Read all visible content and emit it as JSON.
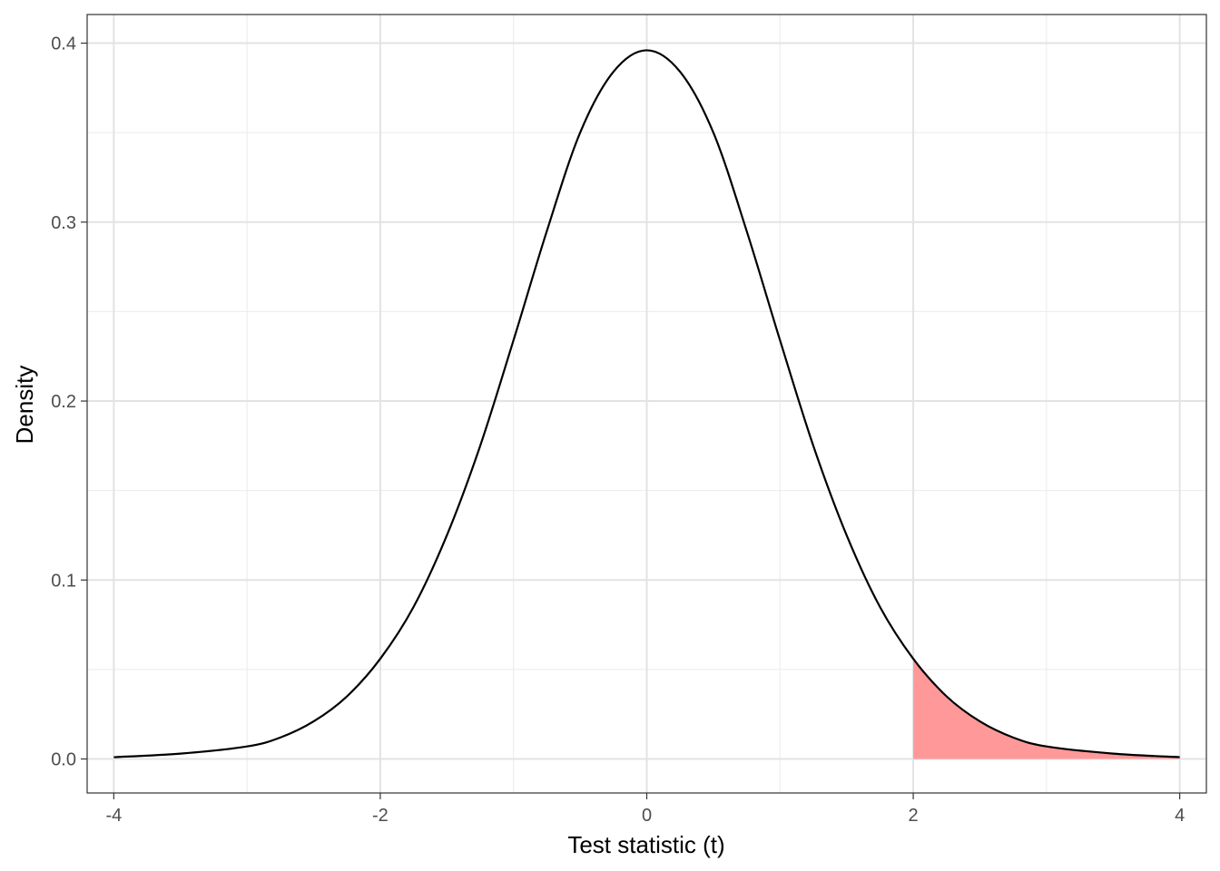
{
  "chart_data": {
    "type": "area",
    "title": "",
    "xlabel": "Test statistic (t)",
    "ylabel": "Density",
    "xlim": [
      -4.2,
      4.2
    ],
    "ylim": [
      -0.019,
      0.416
    ],
    "x_ticks": [
      -4,
      -2,
      0,
      2,
      4
    ],
    "x_tick_labels": [
      "-4",
      "-2",
      "0",
      "2",
      "4"
    ],
    "y_ticks": [
      0.0,
      0.1,
      0.2,
      0.3,
      0.4
    ],
    "y_tick_labels": [
      "0.0",
      "0.1",
      "0.2",
      "0.3",
      "0.4"
    ],
    "x_minor_ticks": [
      -3,
      -1,
      1,
      3
    ],
    "y_minor_ticks": [
      0.05,
      0.15,
      0.25,
      0.35
    ],
    "grid": true,
    "series": [
      {
        "type": "line",
        "color": "#000000",
        "x": [
          -4.0,
          -3.5,
          -3.0,
          -2.75,
          -2.5,
          -2.25,
          -2.0,
          -1.75,
          -1.5,
          -1.25,
          -1.0,
          -0.75,
          -0.5,
          -0.25,
          0.0,
          0.25,
          0.5,
          0.75,
          1.0,
          1.25,
          1.5,
          1.75,
          2.0,
          2.25,
          2.5,
          2.75,
          3.0,
          3.5,
          4.0
        ],
        "values": [
          0.001,
          0.003,
          0.007,
          0.012,
          0.021,
          0.035,
          0.056,
          0.085,
          0.125,
          0.175,
          0.234,
          0.295,
          0.35,
          0.384,
          0.396,
          0.384,
          0.35,
          0.295,
          0.234,
          0.175,
          0.125,
          0.085,
          0.056,
          0.035,
          0.021,
          0.012,
          0.007,
          0.003,
          0.001
        ]
      },
      {
        "type": "area",
        "color": "#ff9999",
        "x": [
          2.0,
          2.25,
          2.5,
          2.75,
          3.0,
          3.5,
          4.0
        ],
        "values": [
          0.056,
          0.035,
          0.021,
          0.012,
          0.007,
          0.003,
          0.001
        ]
      }
    ]
  }
}
